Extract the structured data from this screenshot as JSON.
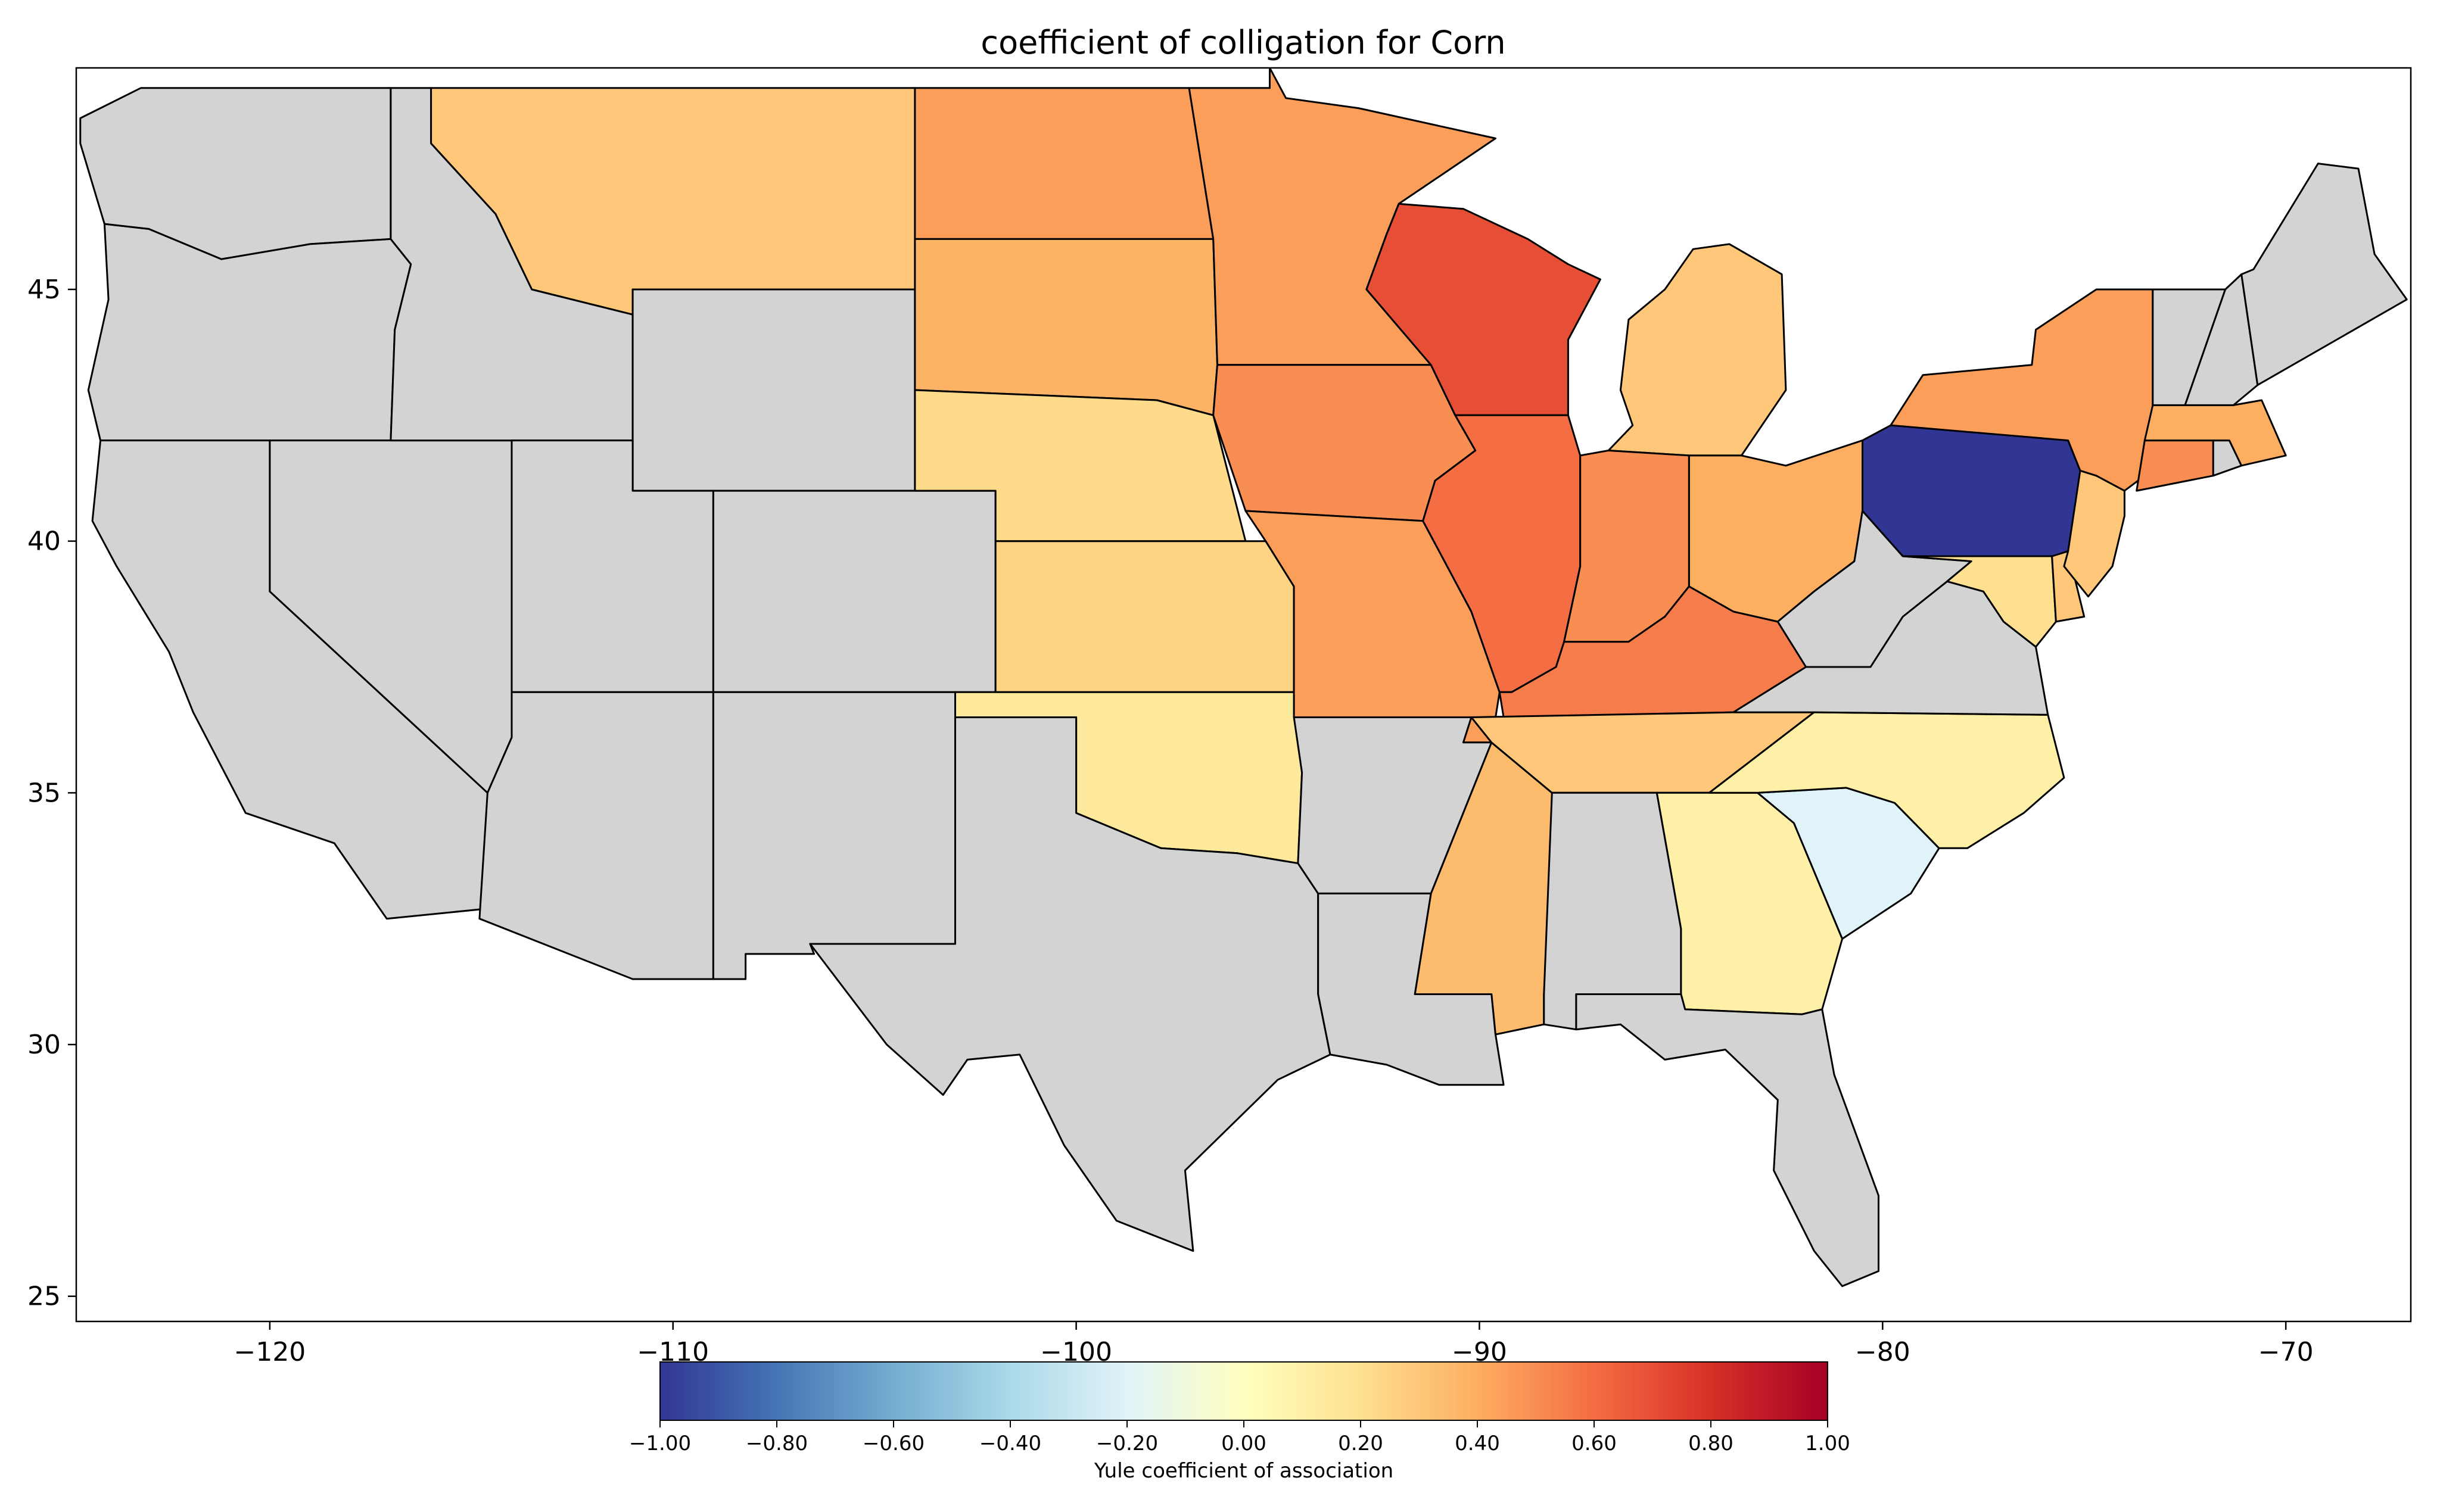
{
  "title": "coefficient of colligation for Corn",
  "map": {
    "projection": "plate carree (lon / lat degrees)",
    "lon_range": [
      -124.8,
      -66.9
    ],
    "lat_range": [
      24.5,
      49.4
    ],
    "x_ticks": [
      {
        "value": -120,
        "label": "−120"
      },
      {
        "value": -110,
        "label": "−110"
      },
      {
        "value": -100,
        "label": "−100"
      },
      {
        "value": -90,
        "label": "−90"
      },
      {
        "value": -80,
        "label": "−80"
      },
      {
        "value": -70,
        "label": "−70"
      }
    ],
    "y_ticks": [
      {
        "value": 25,
        "label": "25"
      },
      {
        "value": 30,
        "label": "30"
      },
      {
        "value": 35,
        "label": "35"
      },
      {
        "value": 40,
        "label": "40"
      },
      {
        "value": 45,
        "label": "45"
      }
    ],
    "no_data_color": "#d3d3d3",
    "boundary_color": "#000000",
    "regions": [
      {
        "name": "Washington",
        "value": null
      },
      {
        "name": "Oregon",
        "value": null
      },
      {
        "name": "California",
        "value": null
      },
      {
        "name": "Nevada",
        "value": null
      },
      {
        "name": "Idaho",
        "value": null
      },
      {
        "name": "Montana",
        "value": 0.3
      },
      {
        "name": "Wyoming",
        "value": null
      },
      {
        "name": "Utah",
        "value": null
      },
      {
        "name": "Arizona",
        "value": null
      },
      {
        "name": "Colorado",
        "value": null
      },
      {
        "name": "New Mexico",
        "value": null
      },
      {
        "name": "North Dakota",
        "value": 0.45
      },
      {
        "name": "South Dakota",
        "value": 0.38
      },
      {
        "name": "Nebraska",
        "value": 0.22
      },
      {
        "name": "Kansas",
        "value": 0.25
      },
      {
        "name": "Oklahoma",
        "value": 0.15
      },
      {
        "name": "Texas",
        "value": null
      },
      {
        "name": "Minnesota",
        "value": 0.45
      },
      {
        "name": "Iowa",
        "value": 0.5
      },
      {
        "name": "Missouri",
        "value": 0.45
      },
      {
        "name": "Arkansas",
        "value": null
      },
      {
        "name": "Louisiana",
        "value": null
      },
      {
        "name": "Wisconsin",
        "value": 0.7
      },
      {
        "name": "Illinois",
        "value": 0.6
      },
      {
        "name": "Mississippi",
        "value": 0.35
      },
      {
        "name": "Michigan",
        "value": 0.3
      },
      {
        "name": "Indiana",
        "value": 0.5
      },
      {
        "name": "Kentucky",
        "value": 0.55
      },
      {
        "name": "Tennessee",
        "value": 0.3
      },
      {
        "name": "Alabama",
        "value": null
      },
      {
        "name": "Ohio",
        "value": 0.4
      },
      {
        "name": "Georgia",
        "value": 0.1
      },
      {
        "name": "Florida",
        "value": null
      },
      {
        "name": "South Carolina",
        "value": -0.2
      },
      {
        "name": "North Carolina",
        "value": 0.1
      },
      {
        "name": "Virginia",
        "value": null
      },
      {
        "name": "West Virginia",
        "value": null
      },
      {
        "name": "Maryland",
        "value": 0.2
      },
      {
        "name": "Delaware",
        "value": 0.3
      },
      {
        "name": "Pennsylvania",
        "value": -1.0
      },
      {
        "name": "New Jersey",
        "value": 0.3
      },
      {
        "name": "New York",
        "value": 0.45
      },
      {
        "name": "Connecticut",
        "value": 0.5
      },
      {
        "name": "Rhode Island",
        "value": null
      },
      {
        "name": "Massachusetts",
        "value": 0.4
      },
      {
        "name": "Vermont",
        "value": null
      },
      {
        "name": "New Hampshire",
        "value": null
      },
      {
        "name": "Maine",
        "value": null
      }
    ]
  },
  "colorbar": {
    "label": "Yule coefficient of association",
    "range": [
      -1.0,
      1.0
    ],
    "colors": [
      "#313695",
      "#4575b4",
      "#74add1",
      "#abd9e9",
      "#e0f3f8",
      "#ffffbf",
      "#fee090",
      "#fdae61",
      "#f46d43",
      "#d73027",
      "#a50026"
    ],
    "ticks": [
      {
        "value": -1.0,
        "label": "−1.00"
      },
      {
        "value": -0.8,
        "label": "−0.80"
      },
      {
        "value": -0.6,
        "label": "−0.60"
      },
      {
        "value": -0.4,
        "label": "−0.40"
      },
      {
        "value": -0.2,
        "label": "−0.20"
      },
      {
        "value": 0.0,
        "label": "0.00"
      },
      {
        "value": 0.2,
        "label": "0.20"
      },
      {
        "value": 0.4,
        "label": "0.40"
      },
      {
        "value": 0.6,
        "label": "0.60"
      },
      {
        "value": 0.8,
        "label": "0.80"
      },
      {
        "value": 1.0,
        "label": "1.00"
      }
    ]
  }
}
